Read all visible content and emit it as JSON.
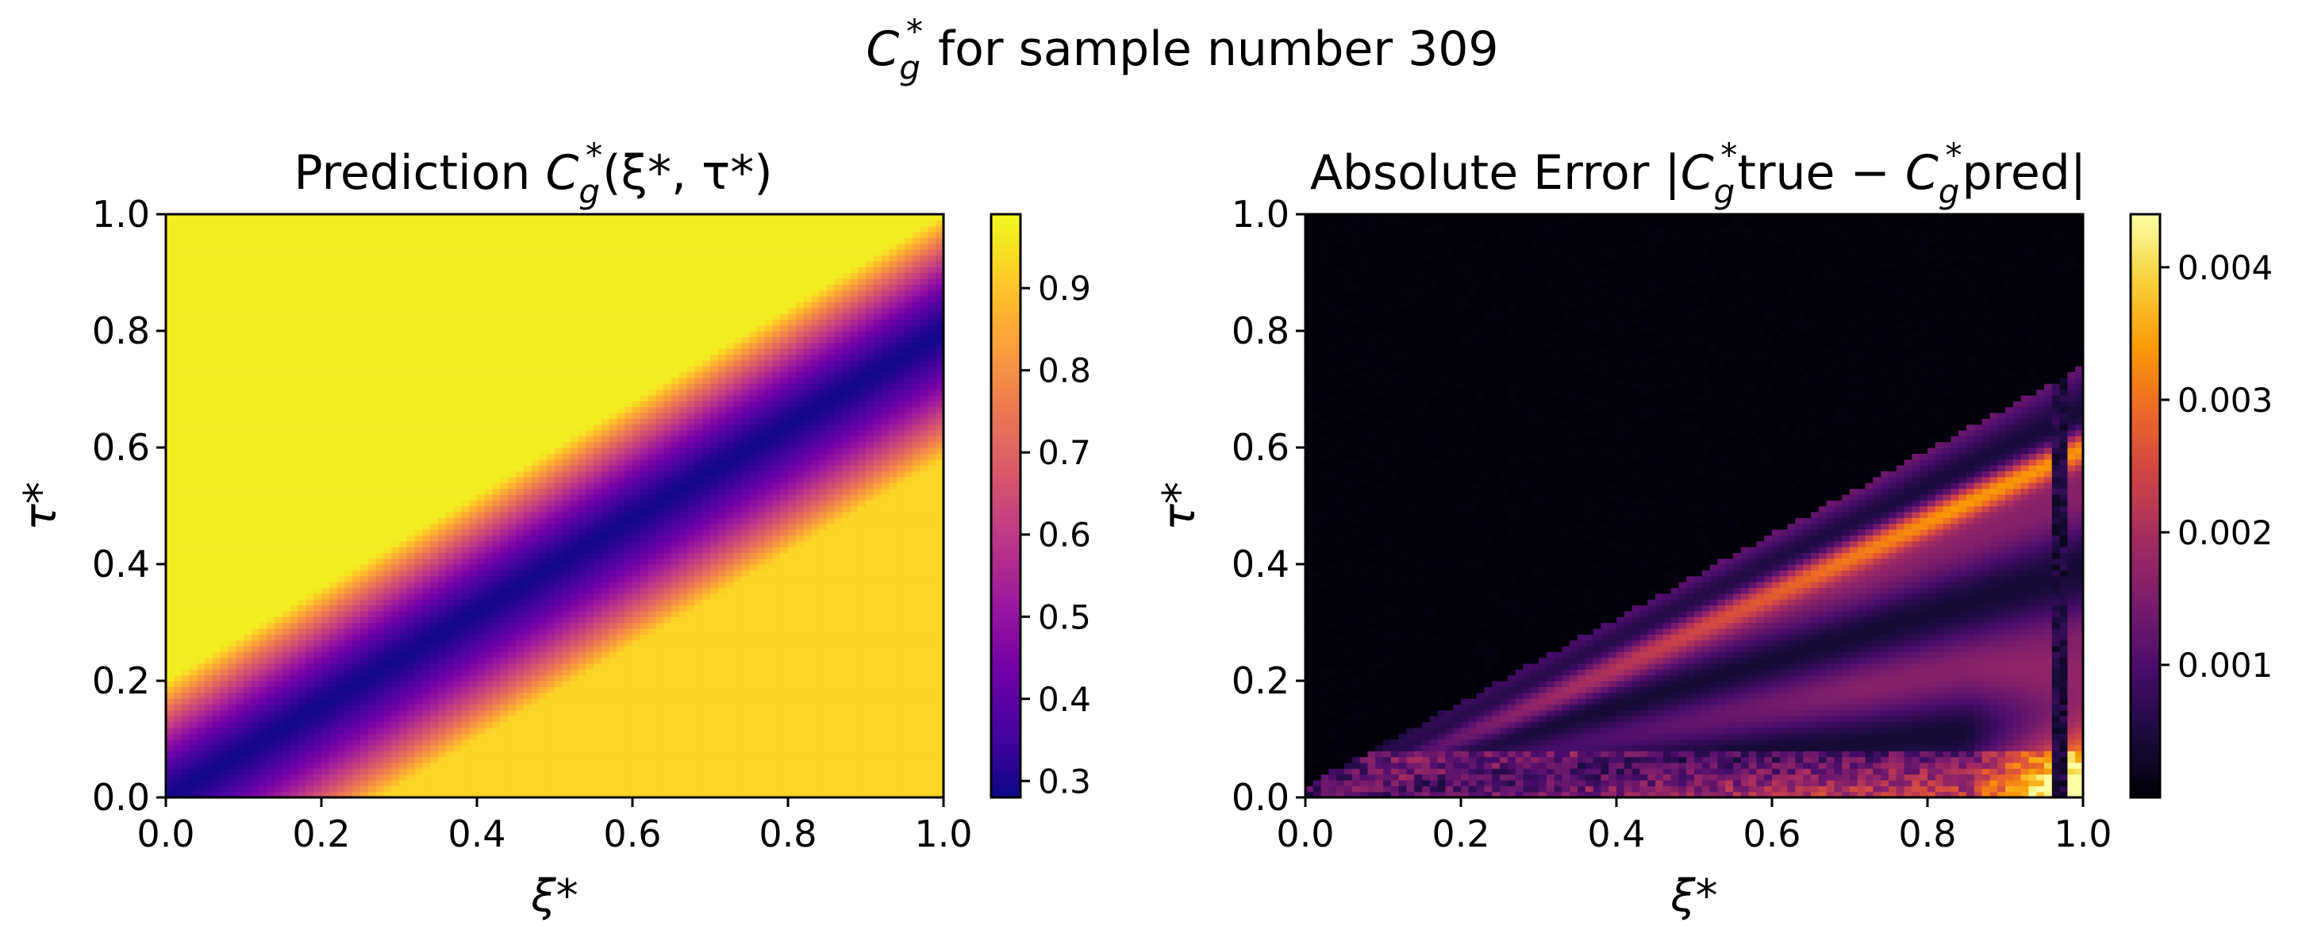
{
  "figure": {
    "suptitle": {
      "base": "C",
      "sub": "g",
      "sup": "*",
      "rest": " for sample number 309"
    }
  },
  "colormaps": {
    "plasma": [
      "#0d0887",
      "#46039f",
      "#7201a8",
      "#9c179e",
      "#bd3786",
      "#d8576b",
      "#ed7953",
      "#fb9f3a",
      "#fdca26",
      "#f0f921"
    ],
    "inferno": [
      "#000004",
      "#1b0c41",
      "#4a0c6b",
      "#781c6d",
      "#a52c60",
      "#cf4446",
      "#ed6925",
      "#fb9b06",
      "#f7d13d",
      "#fcffa4"
    ]
  },
  "chart_data": [
    {
      "type": "heatmap",
      "title": {
        "prefix": "Prediction ",
        "base": "C",
        "sub": "g",
        "sup": "*",
        "args": "(ξ*, τ*)"
      },
      "xlabel": "ξ*",
      "ylabel": "τ*",
      "xlim": [
        0,
        1
      ],
      "ylim": [
        0,
        1
      ],
      "xticks": [
        "0.0",
        "0.2",
        "0.4",
        "0.6",
        "0.8",
        "1.0"
      ],
      "yticks": [
        "0.0",
        "0.2",
        "0.4",
        "0.6",
        "0.8",
        "1.0"
      ],
      "grid": [
        100,
        100
      ],
      "colormap": "plasma",
      "vmin": 0.28,
      "vmax": 0.99,
      "colorbar_ticks": [
        "0.3",
        "0.4",
        "0.5",
        "0.6",
        "0.7",
        "0.8",
        "0.9"
      ],
      "description_model": {
        "upper_left_value": 0.97,
        "valley_value": 0.29,
        "lower_right_value": 0.93
      }
    },
    {
      "type": "heatmap",
      "title": {
        "prefix": "Absolute Error |",
        "base": "C",
        "sub": "g",
        "sup": "*",
        "mid": "true − ",
        "base2": "C",
        "sub2": "g",
        "sup2": "*",
        "end": "pred|"
      },
      "xlabel": "ξ*",
      "ylabel": "τ*",
      "xlim": [
        0,
        1
      ],
      "ylim": [
        0,
        1
      ],
      "xticks": [
        "0.0",
        "0.2",
        "0.4",
        "0.6",
        "0.8",
        "1.0"
      ],
      "yticks": [
        "0.0",
        "0.2",
        "0.4",
        "0.6",
        "0.8",
        "1.0"
      ],
      "grid": [
        100,
        100
      ],
      "colormap": "inferno",
      "vmin": 0.0,
      "vmax": 0.0044,
      "colorbar_ticks": [
        "0.001",
        "0.002",
        "0.003",
        "0.004"
      ],
      "description_model": {
        "upper_left_value": 5e-05,
        "peak_diagonal_value": 0.0035,
        "bottom_right_max": 0.0044
      }
    }
  ]
}
